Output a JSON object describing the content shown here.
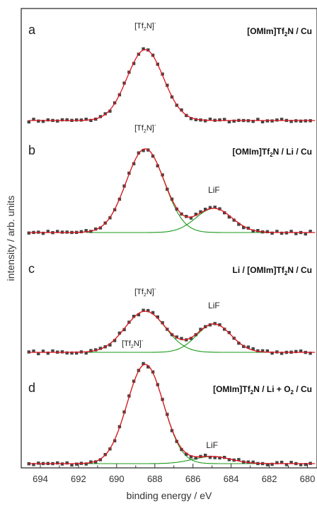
{
  "chart_data": {
    "type": "scatter",
    "xlabel": "binding energy / eV",
    "ylabel": "intensity / arb. units",
    "xlim": [
      695,
      679.5
    ],
    "x_ticks": [
      "694",
      "692",
      "690",
      "688",
      "686",
      "684",
      "682",
      "680"
    ],
    "x_tick_values": [
      694,
      692,
      690,
      688,
      686,
      684,
      682,
      680
    ],
    "grid": false,
    "colors": {
      "data": "#444444",
      "fit": "#e0141e",
      "component": "#1a9a1a"
    },
    "panels": [
      {
        "letter": "a",
        "title_parts": [
          "[OMIm]Tf",
          "2",
          "N / Cu"
        ],
        "peaks": [
          {
            "label": "[Tf",
            "sub": "2",
            "rest": "N]",
            "sup": "-",
            "center": 688.5,
            "height": 100,
            "sigma": 0.95
          }
        ]
      },
      {
        "letter": "b",
        "title_parts": [
          "[OMIm]Tf",
          "2",
          "N / Li / Cu"
        ],
        "peaks": [
          {
            "label": "[Tf",
            "sub": "2",
            "rest": "N]",
            "sup": "-",
            "center": 688.5,
            "height": 118,
            "sigma": 1.0
          },
          {
            "label": "LiF",
            "center": 684.9,
            "height": 34,
            "sigma": 0.95
          }
        ]
      },
      {
        "letter": "c",
        "title_parts": [
          "Li / [OMIm]Tf",
          "2",
          "N / Cu"
        ],
        "peaks": [
          {
            "label": "[Tf",
            "sub": "2",
            "rest": "N]",
            "sup": "-",
            "center": 688.5,
            "height": 58,
            "sigma": 1.05
          },
          {
            "label": "LiF",
            "center": 684.9,
            "height": 40,
            "sigma": 0.9
          }
        ]
      },
      {
        "letter": "d",
        "title_parts": [
          "[OMIm]Tf",
          "2",
          "N / Li + O",
          "2",
          " / Cu"
        ],
        "peaks": [
          {
            "label": "[Tf",
            "sub": "2",
            "rest": "N]",
            "sup": "-",
            "center": 688.5,
            "height": 140,
            "sigma": 0.95
          },
          {
            "label": "LiF",
            "center": 685.0,
            "height": 10,
            "sigma": 1.0
          }
        ]
      }
    ]
  }
}
